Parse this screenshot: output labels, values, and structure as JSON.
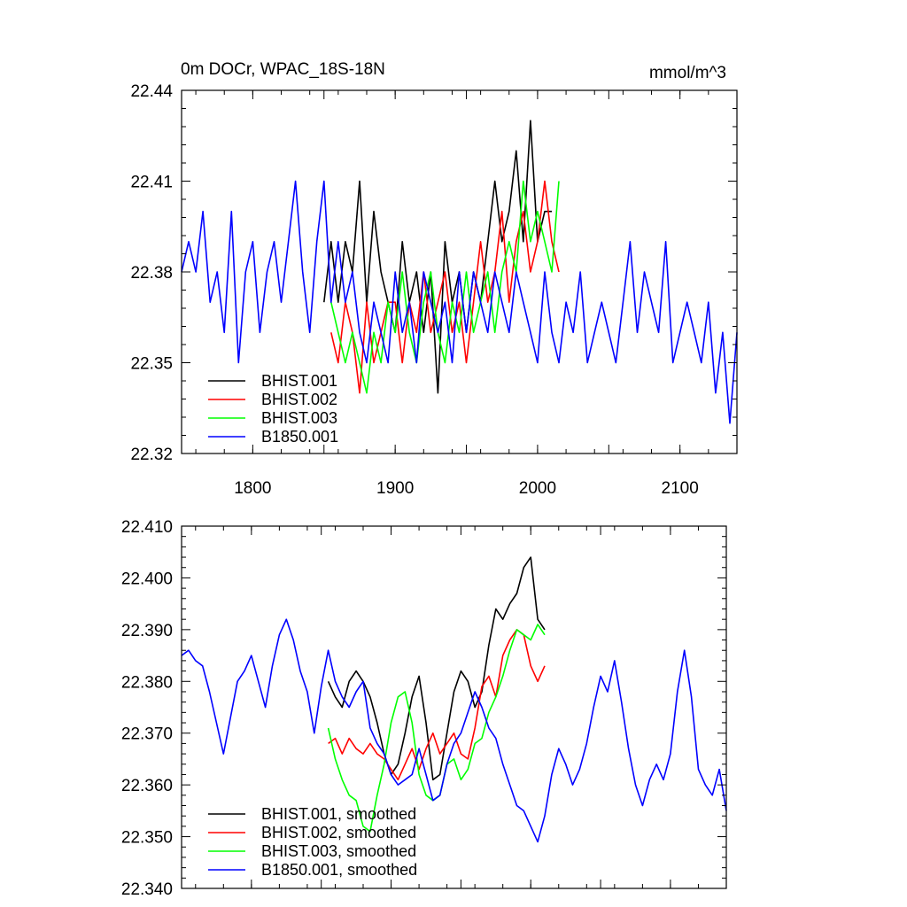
{
  "chart_data": [
    {
      "type": "line",
      "title": "0m DOCr, WPAC_18S-18N",
      "units": "mmol/m^3",
      "xlim": [
        1750,
        2140
      ],
      "ylim": [
        22.32,
        22.44
      ],
      "x_ticks": [
        1800,
        1900,
        2000,
        2100
      ],
      "y_ticks": [
        22.32,
        22.35,
        22.38,
        22.41,
        22.44
      ],
      "y_tick_labels": [
        "22.32",
        "22.35",
        "22.38",
        "22.41",
        "22.44"
      ],
      "legend_position": "lower-left",
      "series": [
        {
          "name": "BHIST.001",
          "color": "#000000",
          "x": [
            1850,
            1855,
            1860,
            1865,
            1870,
            1875,
            1880,
            1885,
            1890,
            1895,
            1900,
            1905,
            1910,
            1915,
            1920,
            1925,
            1930,
            1935,
            1940,
            1945,
            1950,
            1955,
            1960,
            1965,
            1970,
            1975,
            1980,
            1985,
            1990,
            1995,
            2000,
            2005,
            2010
          ],
          "y": [
            22.37,
            22.39,
            22.37,
            22.39,
            22.38,
            22.41,
            22.37,
            22.4,
            22.38,
            22.37,
            22.36,
            22.39,
            22.37,
            22.38,
            22.36,
            22.38,
            22.34,
            22.39,
            22.37,
            22.38,
            22.36,
            22.38,
            22.37,
            22.39,
            22.41,
            22.39,
            22.4,
            22.42,
            22.39,
            22.43,
            22.39,
            22.4,
            22.4
          ]
        },
        {
          "name": "BHIST.002",
          "color": "#ff0000",
          "x": [
            1855,
            1860,
            1865,
            1870,
            1875,
            1880,
            1885,
            1890,
            1895,
            1900,
            1905,
            1910,
            1915,
            1920,
            1925,
            1930,
            1935,
            1940,
            1945,
            1950,
            1955,
            1960,
            1965,
            1970,
            1975,
            1980,
            1985,
            1990,
            1995,
            2000,
            2005,
            2010,
            2015
          ],
          "y": [
            22.36,
            22.35,
            22.37,
            22.36,
            22.34,
            22.37,
            22.35,
            22.36,
            22.37,
            22.37,
            22.35,
            22.37,
            22.36,
            22.38,
            22.36,
            22.37,
            22.38,
            22.36,
            22.37,
            22.35,
            22.37,
            22.39,
            22.37,
            22.38,
            22.4,
            22.37,
            22.39,
            22.4,
            22.38,
            22.39,
            22.41,
            22.39,
            22.38
          ]
        },
        {
          "name": "BHIST.003",
          "color": "#00ff00",
          "x": [
            1855,
            1860,
            1865,
            1870,
            1875,
            1880,
            1885,
            1890,
            1895,
            1900,
            1905,
            1910,
            1915,
            1920,
            1925,
            1930,
            1935,
            1940,
            1945,
            1950,
            1955,
            1960,
            1965,
            1970,
            1975,
            1980,
            1985,
            1990,
            1995,
            2000,
            2005,
            2010,
            2015
          ],
          "y": [
            22.37,
            22.36,
            22.35,
            22.36,
            22.35,
            22.34,
            22.36,
            22.35,
            22.37,
            22.36,
            22.38,
            22.36,
            22.35,
            22.37,
            22.38,
            22.36,
            22.35,
            22.37,
            22.36,
            22.38,
            22.36,
            22.37,
            22.38,
            22.36,
            22.38,
            22.39,
            22.38,
            22.41,
            22.39,
            22.4,
            22.39,
            22.38,
            22.41
          ]
        },
        {
          "name": "B1850.001",
          "color": "#0000ff",
          "x": [
            1750,
            1755,
            1760,
            1765,
            1770,
            1775,
            1780,
            1785,
            1790,
            1795,
            1800,
            1805,
            1810,
            1815,
            1820,
            1825,
            1830,
            1835,
            1840,
            1845,
            1850,
            1855,
            1860,
            1865,
            1870,
            1875,
            1880,
            1885,
            1890,
            1895,
            1900,
            1905,
            1910,
            1915,
            1920,
            1925,
            1930,
            1935,
            1940,
            1945,
            1950,
            1955,
            1960,
            1965,
            1970,
            1975,
            1980,
            1985,
            1990,
            1995,
            2000,
            2005,
            2010,
            2015,
            2020,
            2025,
            2030,
            2035,
            2040,
            2045,
            2050,
            2055,
            2060,
            2065,
            2070,
            2075,
            2080,
            2085,
            2090,
            2095,
            2100,
            2105,
            2110,
            2115,
            2120,
            2125,
            2130,
            2135,
            2140
          ],
          "y": [
            22.38,
            22.39,
            22.38,
            22.4,
            22.37,
            22.38,
            22.36,
            22.4,
            22.35,
            22.38,
            22.39,
            22.36,
            22.38,
            22.39,
            22.37,
            22.39,
            22.41,
            22.38,
            22.36,
            22.39,
            22.41,
            22.37,
            22.39,
            22.37,
            22.38,
            22.36,
            22.35,
            22.37,
            22.36,
            22.35,
            22.38,
            22.36,
            22.37,
            22.35,
            22.38,
            22.37,
            22.36,
            22.37,
            22.35,
            22.38,
            22.36,
            22.38,
            22.37,
            22.36,
            22.38,
            22.37,
            22.36,
            22.38,
            22.37,
            22.36,
            22.35,
            22.38,
            22.36,
            22.35,
            22.37,
            22.36,
            22.38,
            22.35,
            22.36,
            22.37,
            22.36,
            22.35,
            22.37,
            22.39,
            22.36,
            22.38,
            22.37,
            22.36,
            22.39,
            22.35,
            22.36,
            22.37,
            22.36,
            22.35,
            22.37,
            22.34,
            22.36,
            22.33,
            22.36
          ]
        }
      ]
    },
    {
      "type": "line",
      "title": "",
      "xlim": [
        1750,
        2140
      ],
      "ylim": [
        22.34,
        22.41
      ],
      "x_ticks": [
        1800,
        1900,
        2000,
        2100
      ],
      "y_ticks": [
        22.34,
        22.35,
        22.36,
        22.37,
        22.38,
        22.39,
        22.4,
        22.41
      ],
      "y_tick_labels": [
        "22.340",
        "22.350",
        "22.360",
        "22.370",
        "22.380",
        "22.390",
        "22.400",
        "22.410"
      ],
      "legend_position": "lower-left",
      "series": [
        {
          "name": "BHIST.001, smoothed",
          "color": "#000000",
          "x": [
            1855,
            1860,
            1865,
            1870,
            1875,
            1880,
            1885,
            1890,
            1895,
            1900,
            1905,
            1910,
            1915,
            1920,
            1925,
            1930,
            1935,
            1940,
            1945,
            1950,
            1955,
            1960,
            1965,
            1970,
            1975,
            1980,
            1985,
            1990,
            1995,
            2000,
            2005,
            2010
          ],
          "y": [
            22.38,
            22.377,
            22.375,
            22.38,
            22.382,
            22.38,
            22.377,
            22.372,
            22.366,
            22.362,
            22.364,
            22.37,
            22.377,
            22.381,
            22.372,
            22.361,
            22.362,
            22.37,
            22.378,
            22.382,
            22.38,
            22.375,
            22.378,
            22.387,
            22.394,
            22.392,
            22.395,
            22.397,
            22.402,
            22.404,
            22.392,
            22.39
          ]
        },
        {
          "name": "BHIST.002, smoothed",
          "color": "#ff0000",
          "x": [
            1855,
            1860,
            1865,
            1870,
            1875,
            1880,
            1885,
            1890,
            1895,
            1900,
            1905,
            1910,
            1915,
            1920,
            1925,
            1930,
            1935,
            1940,
            1945,
            1950,
            1955,
            1960,
            1965,
            1970,
            1975,
            1980,
            1985,
            1990,
            1995,
            2000,
            2005,
            2010
          ],
          "y": [
            22.368,
            22.369,
            22.366,
            22.369,
            22.367,
            22.366,
            22.368,
            22.366,
            22.365,
            22.363,
            22.361,
            22.364,
            22.367,
            22.363,
            22.367,
            22.37,
            22.366,
            22.368,
            22.37,
            22.366,
            22.365,
            22.371,
            22.379,
            22.381,
            22.377,
            22.385,
            22.388,
            22.39,
            22.389,
            22.383,
            22.38,
            22.383
          ]
        },
        {
          "name": "BHIST.003, smoothed",
          "color": "#00ff00",
          "x": [
            1855,
            1860,
            1865,
            1870,
            1875,
            1880,
            1885,
            1890,
            1895,
            1900,
            1905,
            1910,
            1915,
            1920,
            1925,
            1930,
            1935,
            1940,
            1945,
            1950,
            1955,
            1960,
            1965,
            1970,
            1975,
            1980,
            1985,
            1990,
            1995,
            2000,
            2005,
            2010
          ],
          "y": [
            22.371,
            22.365,
            22.361,
            22.358,
            22.357,
            22.352,
            22.351,
            22.358,
            22.364,
            22.372,
            22.377,
            22.378,
            22.372,
            22.362,
            22.358,
            22.357,
            22.358,
            22.364,
            22.365,
            22.361,
            22.363,
            22.368,
            22.369,
            22.374,
            22.377,
            22.381,
            22.386,
            22.39,
            22.389,
            22.388,
            22.391,
            22.389
          ]
        },
        {
          "name": "B1850.001, smoothed",
          "color": "#0000ff",
          "x": [
            1750,
            1755,
            1760,
            1765,
            1770,
            1775,
            1780,
            1785,
            1790,
            1795,
            1800,
            1805,
            1810,
            1815,
            1820,
            1825,
            1830,
            1835,
            1840,
            1845,
            1850,
            1855,
            1860,
            1865,
            1870,
            1875,
            1880,
            1885,
            1890,
            1895,
            1900,
            1905,
            1910,
            1915,
            1920,
            1925,
            1930,
            1935,
            1940,
            1945,
            1950,
            1955,
            1960,
            1965,
            1970,
            1975,
            1980,
            1985,
            1990,
            1995,
            2000,
            2005,
            2010,
            2015,
            2020,
            2025,
            2030,
            2035,
            2040,
            2045,
            2050,
            2055,
            2060,
            2065,
            2070,
            2075,
            2080,
            2085,
            2090,
            2095,
            2100,
            2105,
            2110,
            2115,
            2120,
            2125,
            2130,
            2135,
            2140
          ],
          "y": [
            22.385,
            22.386,
            22.384,
            22.383,
            22.378,
            22.372,
            22.366,
            22.373,
            22.38,
            22.382,
            22.385,
            22.38,
            22.375,
            22.383,
            22.389,
            22.392,
            22.388,
            22.382,
            22.378,
            22.37,
            22.379,
            22.386,
            22.38,
            22.377,
            22.375,
            22.378,
            22.38,
            22.371,
            22.368,
            22.366,
            22.362,
            22.36,
            22.361,
            22.362,
            22.367,
            22.362,
            22.357,
            22.358,
            22.364,
            22.368,
            22.37,
            22.374,
            22.378,
            22.375,
            22.371,
            22.369,
            22.364,
            22.36,
            22.356,
            22.355,
            22.352,
            22.349,
            22.354,
            22.362,
            22.367,
            22.364,
            22.36,
            22.363,
            22.368,
            22.375,
            22.381,
            22.378,
            22.384,
            22.376,
            22.367,
            22.36,
            22.356,
            22.361,
            22.364,
            22.361,
            22.366,
            22.378,
            22.386,
            22.377,
            22.363,
            22.36,
            22.358,
            22.363,
            22.355
          ]
        }
      ]
    }
  ]
}
